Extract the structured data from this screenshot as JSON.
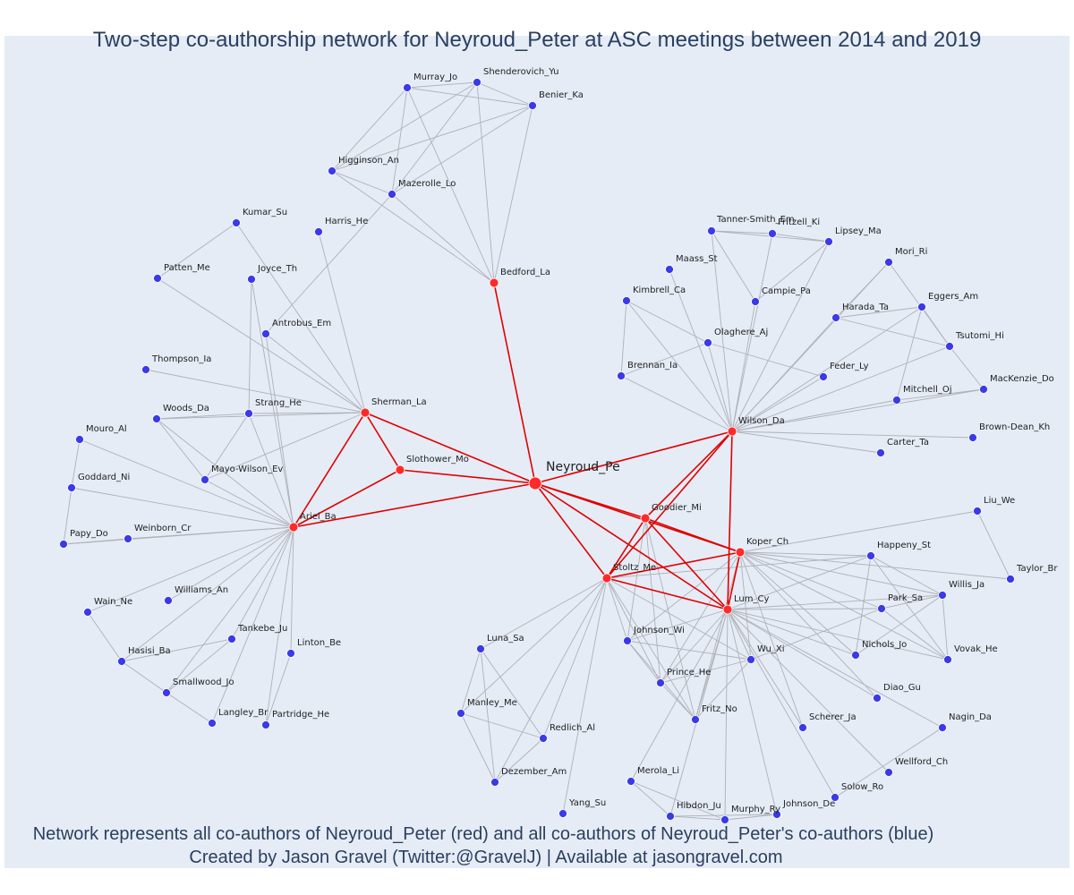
{
  "title": "Two-step co-authorship network for Neyroud_Peter at ASC meetings between 2014 and 2019",
  "caption_line1": "Network represents all co-authors of Neyroud_Peter (red) and all co-authors of Neyroud_Peter's co-authors (blue)",
  "caption_line2": "Created by Jason Gravel (Twitter:@GravelJ) | Available at jasongravel.com",
  "colors": {
    "background": "#e5ecf6",
    "first_degree": "#ff2a2a",
    "second_degree": "#3a3ae8",
    "first_degree_edge": "#e00000",
    "second_degree_edge": "#b0b0b8",
    "title_text": "#2a3f5f"
  },
  "chart_data": {
    "type": "network",
    "center": "Neyroud_Pe",
    "nodes": [
      {
        "id": "Neyroud_Pe",
        "group": "center"
      },
      {
        "id": "Bedford_La",
        "group": "first"
      },
      {
        "id": "Sherman_La",
        "group": "first"
      },
      {
        "id": "Slothower_Mo",
        "group": "first"
      },
      {
        "id": "Ariel_Ba",
        "group": "first"
      },
      {
        "id": "Wilson_Da",
        "group": "first"
      },
      {
        "id": "Goodier_Mi",
        "group": "first"
      },
      {
        "id": "Koper_Ch",
        "group": "first"
      },
      {
        "id": "Stoltz_Me",
        "group": "first"
      },
      {
        "id": "Lum_Cy",
        "group": "first"
      },
      {
        "id": "Murray_Jo",
        "group": "second"
      },
      {
        "id": "Shenderovich_Yu",
        "group": "second"
      },
      {
        "id": "Benier_Ka",
        "group": "second"
      },
      {
        "id": "Higginson_An",
        "group": "second"
      },
      {
        "id": "Mazerolle_Lo",
        "group": "second"
      },
      {
        "id": "Harris_He",
        "group": "second"
      },
      {
        "id": "Kumar_Su",
        "group": "second"
      },
      {
        "id": "Patten_Me",
        "group": "second"
      },
      {
        "id": "Joyce_Th",
        "group": "second"
      },
      {
        "id": "Antrobus_Em",
        "group": "second"
      },
      {
        "id": "Thompson_Ia",
        "group": "second"
      },
      {
        "id": "Woods_Da",
        "group": "second"
      },
      {
        "id": "Strang_He",
        "group": "second"
      },
      {
        "id": "Mouro_Al",
        "group": "second"
      },
      {
        "id": "Mayo-Wilson_Ev",
        "group": "second"
      },
      {
        "id": "Goddard_Ni",
        "group": "second"
      },
      {
        "id": "Papy_Do",
        "group": "second"
      },
      {
        "id": "Weinborn_Cr",
        "group": "second"
      },
      {
        "id": "Wain_Ne",
        "group": "second"
      },
      {
        "id": "Williams_An",
        "group": "second"
      },
      {
        "id": "Tankebe_Ju",
        "group": "second"
      },
      {
        "id": "Hasisi_Ba",
        "group": "second"
      },
      {
        "id": "Linton_Be",
        "group": "second"
      },
      {
        "id": "Smallwood_Jo",
        "group": "second"
      },
      {
        "id": "Langley_Br",
        "group": "second"
      },
      {
        "id": "Partridge_He",
        "group": "second"
      },
      {
        "id": "Tanner-Smith_Em",
        "group": "second"
      },
      {
        "id": "Fritzell_Ki",
        "group": "second"
      },
      {
        "id": "Lipsey_Ma",
        "group": "second"
      },
      {
        "id": "Maass_St",
        "group": "second"
      },
      {
        "id": "Mori_Ri",
        "group": "second"
      },
      {
        "id": "Kimbrell_Ca",
        "group": "second"
      },
      {
        "id": "Campie_Pa",
        "group": "second"
      },
      {
        "id": "Eggers_Am",
        "group": "second"
      },
      {
        "id": "Harada_Ta",
        "group": "second"
      },
      {
        "id": "Olaghere_Aj",
        "group": "second"
      },
      {
        "id": "Tsutomi_Hi",
        "group": "second"
      },
      {
        "id": "Brennan_Ia",
        "group": "second"
      },
      {
        "id": "Feder_Ly",
        "group": "second"
      },
      {
        "id": "MacKenzie_Do",
        "group": "second"
      },
      {
        "id": "Mitchell_Oj",
        "group": "second"
      },
      {
        "id": "Brown-Dean_Kh",
        "group": "second"
      },
      {
        "id": "Carter_Ta",
        "group": "second"
      },
      {
        "id": "Liu_We",
        "group": "second"
      },
      {
        "id": "Happeny_St",
        "group": "second"
      },
      {
        "id": "Taylor_Br",
        "group": "second"
      },
      {
        "id": "Willis_Ja",
        "group": "second"
      },
      {
        "id": "Park_Sa",
        "group": "second"
      },
      {
        "id": "Luna_Sa",
        "group": "second"
      },
      {
        "id": "Johnson_Wi",
        "group": "second"
      },
      {
        "id": "Nichols_Jo",
        "group": "second"
      },
      {
        "id": "Vovak_He",
        "group": "second"
      },
      {
        "id": "Wu_Xi",
        "group": "second"
      },
      {
        "id": "Prince_He",
        "group": "second"
      },
      {
        "id": "Diao_Gu",
        "group": "second"
      },
      {
        "id": "Manley_Me",
        "group": "second"
      },
      {
        "id": "Fritz_No",
        "group": "second"
      },
      {
        "id": "Redlich_Al",
        "group": "second"
      },
      {
        "id": "Scherer_Ja",
        "group": "second"
      },
      {
        "id": "Nagin_Da",
        "group": "second"
      },
      {
        "id": "Dezember_Am",
        "group": "second"
      },
      {
        "id": "Wellford_Ch",
        "group": "second"
      },
      {
        "id": "Merola_Li",
        "group": "second"
      },
      {
        "id": "Solow_Ro",
        "group": "second"
      },
      {
        "id": "Hibdon_Ju",
        "group": "second"
      },
      {
        "id": "Johnson_De",
        "group": "second"
      },
      {
        "id": "Murphy_Ry",
        "group": "second"
      },
      {
        "id": "Yang_Su",
        "group": "second"
      }
    ],
    "edges": [
      [
        "Neyroud_Pe",
        "Bedford_La"
      ],
      [
        "Neyroud_Pe",
        "Sherman_La"
      ],
      [
        "Neyroud_Pe",
        "Slothower_Mo"
      ],
      [
        "Neyroud_Pe",
        "Ariel_Ba"
      ],
      [
        "Neyroud_Pe",
        "Wilson_Da"
      ],
      [
        "Neyroud_Pe",
        "Goodier_Mi"
      ],
      [
        "Neyroud_Pe",
        "Koper_Ch"
      ],
      [
        "Neyroud_Pe",
        "Stoltz_Me"
      ],
      [
        "Neyroud_Pe",
        "Lum_Cy"
      ],
      [
        "Sherman_La",
        "Slothower_Mo"
      ],
      [
        "Sherman_La",
        "Ariel_Ba"
      ],
      [
        "Slothower_Mo",
        "Ariel_Ba"
      ],
      [
        "Wilson_Da",
        "Goodier_Mi"
      ],
      [
        "Wilson_Da",
        "Stoltz_Me"
      ],
      [
        "Wilson_Da",
        "Lum_Cy"
      ],
      [
        "Goodier_Mi",
        "Koper_Ch"
      ],
      [
        "Goodier_Mi",
        "Stoltz_Me"
      ],
      [
        "Goodier_Mi",
        "Lum_Cy"
      ],
      [
        "Koper_Ch",
        "Stoltz_Me"
      ],
      [
        "Koper_Ch",
        "Lum_Cy"
      ],
      [
        "Stoltz_Me",
        "Lum_Cy"
      ],
      [
        "Bedford_La",
        "Murray_Jo"
      ],
      [
        "Bedford_La",
        "Shenderovich_Yu"
      ],
      [
        "Bedford_La",
        "Benier_Ka"
      ],
      [
        "Bedford_La",
        "Higginson_An"
      ],
      [
        "Bedford_La",
        "Mazerolle_Lo"
      ],
      [
        "Murray_Jo",
        "Shenderovich_Yu"
      ],
      [
        "Murray_Jo",
        "Benier_Ka"
      ],
      [
        "Murray_Jo",
        "Higginson_An"
      ],
      [
        "Murray_Jo",
        "Mazerolle_Lo"
      ],
      [
        "Shenderovich_Yu",
        "Benier_Ka"
      ],
      [
        "Shenderovich_Yu",
        "Higginson_An"
      ],
      [
        "Shenderovich_Yu",
        "Mazerolle_Lo"
      ],
      [
        "Benier_Ka",
        "Higginson_An"
      ],
      [
        "Benier_Ka",
        "Mazerolle_Lo"
      ],
      [
        "Higginson_An",
        "Mazerolle_Lo"
      ],
      [
        "Mazerolle_Lo",
        "Antrobus_Em"
      ],
      [
        "Sherman_La",
        "Harris_He"
      ],
      [
        "Sherman_La",
        "Kumar_Su"
      ],
      [
        "Sherman_La",
        "Patten_Me"
      ],
      [
        "Sherman_La",
        "Strang_He"
      ],
      [
        "Sherman_La",
        "Woods_Da"
      ],
      [
        "Sherman_La",
        "Mayo-Wilson_Ev"
      ],
      [
        "Sherman_La",
        "Antrobus_Em"
      ],
      [
        "Sherman_La",
        "Thompson_Ia"
      ],
      [
        "Kumar_Su",
        "Patten_Me"
      ],
      [
        "Ariel_Ba",
        "Joyce_Th"
      ],
      [
        "Ariel_Ba",
        "Antrobus_Em"
      ],
      [
        "Ariel_Ba",
        "Strang_He"
      ],
      [
        "Ariel_Ba",
        "Woods_Da"
      ],
      [
        "Ariel_Ba",
        "Mouro_Al"
      ],
      [
        "Ariel_Ba",
        "Mayo-Wilson_Ev"
      ],
      [
        "Ariel_Ba",
        "Goddard_Ni"
      ],
      [
        "Ariel_Ba",
        "Papy_Do"
      ],
      [
        "Ariel_Ba",
        "Weinborn_Cr"
      ],
      [
        "Ariel_Ba",
        "Wain_Ne"
      ],
      [
        "Ariel_Ba",
        "Williams_An"
      ],
      [
        "Ariel_Ba",
        "Tankebe_Ju"
      ],
      [
        "Ariel_Ba",
        "Hasisi_Ba"
      ],
      [
        "Ariel_Ba",
        "Linton_Be"
      ],
      [
        "Ariel_Ba",
        "Smallwood_Jo"
      ],
      [
        "Ariel_Ba",
        "Langley_Br"
      ],
      [
        "Ariel_Ba",
        "Partridge_He"
      ],
      [
        "Joyce_Th",
        "Strang_He"
      ],
      [
        "Strang_He",
        "Woods_Da"
      ],
      [
        "Strang_He",
        "Mayo-Wilson_Ev"
      ],
      [
        "Woods_Da",
        "Mayo-Wilson_Ev"
      ],
      [
        "Mouro_Al",
        "Goddard_Ni"
      ],
      [
        "Goddard_Ni",
        "Papy_Do"
      ],
      [
        "Papy_Do",
        "Weinborn_Cr"
      ],
      [
        "Wain_Ne",
        "Hasisi_Ba"
      ],
      [
        "Hasisi_Ba",
        "Tankebe_Ju"
      ],
      [
        "Hasisi_Ba",
        "Smallwood_Jo"
      ],
      [
        "Smallwood_Jo",
        "Tankebe_Ju"
      ],
      [
        "Smallwood_Jo",
        "Langley_Br"
      ],
      [
        "Linton_Be",
        "Partridge_He"
      ],
      [
        "Wilson_Da",
        "Tanner-Smith_Em"
      ],
      [
        "Wilson_Da",
        "Fritzell_Ki"
      ],
      [
        "Wilson_Da",
        "Lipsey_Ma"
      ],
      [
        "Wilson_Da",
        "Maass_St"
      ],
      [
        "Wilson_Da",
        "Mori_Ri"
      ],
      [
        "Wilson_Da",
        "Kimbrell_Ca"
      ],
      [
        "Wilson_Da",
        "Campie_Pa"
      ],
      [
        "Wilson_Da",
        "Eggers_Am"
      ],
      [
        "Wilson_Da",
        "Harada_Ta"
      ],
      [
        "Wilson_Da",
        "Olaghere_Aj"
      ],
      [
        "Wilson_Da",
        "Tsutomi_Hi"
      ],
      [
        "Wilson_Da",
        "Brennan_Ia"
      ],
      [
        "Wilson_Da",
        "Feder_Ly"
      ],
      [
        "Wilson_Da",
        "MacKenzie_Do"
      ],
      [
        "Wilson_Da",
        "Mitchell_Oj"
      ],
      [
        "Wilson_Da",
        "Brown-Dean_Kh"
      ],
      [
        "Wilson_Da",
        "Carter_Ta"
      ],
      [
        "Tanner-Smith_Em",
        "Fritzell_Ki"
      ],
      [
        "Tanner-Smith_Em",
        "Lipsey_Ma"
      ],
      [
        "Tanner-Smith_Em",
        "Campie_Pa"
      ],
      [
        "Fritzell_Ki",
        "Lipsey_Ma"
      ],
      [
        "Lipsey_Ma",
        "Campie_Pa"
      ],
      [
        "Kimbrell_Ca",
        "Brennan_Ia"
      ],
      [
        "Kimbrell_Ca",
        "Olaghere_Aj"
      ],
      [
        "Olaghere_Aj",
        "Brennan_Ia"
      ],
      [
        "Olaghere_Aj",
        "Feder_Ly"
      ],
      [
        "Mori_Ri",
        "Harada_Ta"
      ],
      [
        "Mori_Ri",
        "Tsutomi_Hi"
      ],
      [
        "Eggers_Am",
        "Harada_Ta"
      ],
      [
        "Eggers_Am",
        "Tsutomi_Hi"
      ],
      [
        "Eggers_Am",
        "Mitchell_Oj"
      ],
      [
        "Tsutomi_Hi",
        "MacKenzie_Do"
      ],
      [
        "Harada_Ta",
        "Tsutomi_Hi"
      ],
      [
        "Mitchell_Oj",
        "MacKenzie_Do"
      ],
      [
        "Koper_Ch",
        "Liu_We"
      ],
      [
        "Koper_Ch",
        "Happeny_St"
      ],
      [
        "Koper_Ch",
        "Taylor_Br"
      ],
      [
        "Koper_Ch",
        "Willis_Ja"
      ],
      [
        "Koper_Ch",
        "Park_Sa"
      ],
      [
        "Koper_Ch",
        "Johnson_Wi"
      ],
      [
        "Koper_Ch",
        "Nichols_Jo"
      ],
      [
        "Koper_Ch",
        "Vovak_He"
      ],
      [
        "Koper_Ch",
        "Wu_Xi"
      ],
      [
        "Koper_Ch",
        "Prince_He"
      ],
      [
        "Koper_Ch",
        "Diao_Gu"
      ],
      [
        "Koper_Ch",
        "Fritz_No"
      ],
      [
        "Koper_Ch",
        "Scherer_Ja"
      ],
      [
        "Liu_We",
        "Taylor_Br"
      ],
      [
        "Lum_Cy",
        "Happeny_St"
      ],
      [
        "Lum_Cy",
        "Willis_Ja"
      ],
      [
        "Lum_Cy",
        "Park_Sa"
      ],
      [
        "Lum_Cy",
        "Johnson_Wi"
      ],
      [
        "Lum_Cy",
        "Nichols_Jo"
      ],
      [
        "Lum_Cy",
        "Vovak_He"
      ],
      [
        "Lum_Cy",
        "Wu_Xi"
      ],
      [
        "Lum_Cy",
        "Prince_He"
      ],
      [
        "Lum_Cy",
        "Diao_Gu"
      ],
      [
        "Lum_Cy",
        "Fritz_No"
      ],
      [
        "Lum_Cy",
        "Scherer_Ja"
      ],
      [
        "Lum_Cy",
        "Nagin_Da"
      ],
      [
        "Lum_Cy",
        "Wellford_Ch"
      ],
      [
        "Lum_Cy",
        "Merola_Li"
      ],
      [
        "Lum_Cy",
        "Solow_Ro"
      ],
      [
        "Lum_Cy",
        "Hibdon_Ju"
      ],
      [
        "Lum_Cy",
        "Johnson_De"
      ],
      [
        "Lum_Cy",
        "Murphy_Ry"
      ],
      [
        "Happeny_St",
        "Willis_Ja"
      ],
      [
        "Happeny_St",
        "Vovak_He"
      ],
      [
        "Happeny_St",
        "Nichols_Jo"
      ],
      [
        "Willis_Ja",
        "Park_Sa"
      ],
      [
        "Willis_Ja",
        "Vovak_He"
      ],
      [
        "Willis_Ja",
        "Nichols_Jo"
      ],
      [
        "Park_Sa",
        "Vovak_He"
      ],
      [
        "Wu_Xi",
        "Prince_He"
      ],
      [
        "Wu_Xi",
        "Fritz_No"
      ],
      [
        "Wu_Xi",
        "Johnson_Wi"
      ],
      [
        "Wu_Xi",
        "Park_Sa"
      ],
      [
        "Prince_He",
        "Fritz_No"
      ],
      [
        "Johnson_Wi",
        "Prince_He"
      ],
      [
        "Johnson_Wi",
        "Fritz_No"
      ],
      [
        "Nagin_Da",
        "Solow_Ro"
      ],
      [
        "Merola_Li",
        "Hibdon_Ju"
      ],
      [
        "Merola_Li",
        "Murphy_Ry"
      ],
      [
        "Hibdon_Ju",
        "Murphy_Ry"
      ],
      [
        "Hibdon_Ju",
        "Johnson_De"
      ],
      [
        "Murphy_Ry",
        "Johnson_De"
      ],
      [
        "Stoltz_Me",
        "Luna_Sa"
      ],
      [
        "Stoltz_Me",
        "Manley_Me"
      ],
      [
        "Stoltz_Me",
        "Redlich_Al"
      ],
      [
        "Stoltz_Me",
        "Dezember_Am"
      ],
      [
        "Stoltz_Me",
        "Yang_Su"
      ],
      [
        "Stoltz_Me",
        "Johnson_Wi"
      ],
      [
        "Stoltz_Me",
        "Prince_He"
      ],
      [
        "Stoltz_Me",
        "Fritz_No"
      ],
      [
        "Stoltz_Me",
        "Wu_Xi"
      ],
      [
        "Stoltz_Me",
        "Happeny_St"
      ],
      [
        "Luna_Sa",
        "Manley_Me"
      ],
      [
        "Luna_Sa",
        "Redlich_Al"
      ],
      [
        "Luna_Sa",
        "Dezember_Am"
      ],
      [
        "Manley_Me",
        "Redlich_Al"
      ],
      [
        "Manley_Me",
        "Dezember_Am"
      ],
      [
        "Redlich_Al",
        "Dezember_Am"
      ],
      [
        "Goodier_Mi",
        "Johnson_Wi"
      ],
      [
        "Goodier_Mi",
        "Prince_He"
      ],
      [
        "Goodier_Mi",
        "Fritz_No"
      ]
    ]
  }
}
